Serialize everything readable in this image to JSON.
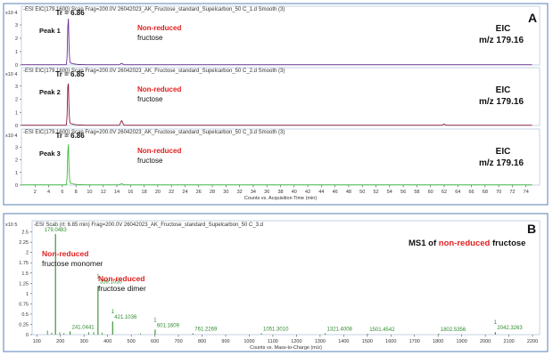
{
  "chart_data": [
    {
      "type": "line",
      "panel": "A",
      "header": "-ESI EIC(179.1600) Scan Frag=200.0V 26042023_AK_Fructose_standard_Supelcarbon_50 C_1.d  Smooth (3)",
      "yexp": "x10 4",
      "y_ticks": [
        "0",
        "1",
        "2",
        "3"
      ],
      "peak_label": "Peak 1",
      "retention": "Tr = 6.86",
      "tr": 6.86,
      "peak_height": 3.6,
      "minor_peaks": [
        {
          "x": 14.7,
          "y": 0.1
        }
      ],
      "color": "#6b2f8f",
      "ann_red": "Non-reduced",
      "ann_black": "fructose",
      "eic": "EIC",
      "mz": "m/z 179.16",
      "xlim": [
        0,
        76
      ]
    },
    {
      "type": "line",
      "header": "-ESI EIC(179.1600) Scan Frag=200.0V 26042023_AK_Fructose_standard_Supelcarbon_50 C_2.d  Smooth (3)",
      "yexp": "x10 4",
      "y_ticks": [
        "0",
        "1",
        "2",
        "3"
      ],
      "peak_label": "Peak 2",
      "retention": "Tr = 6.85",
      "tr": 6.85,
      "peak_height": 3.5,
      "minor_peaks": [
        {
          "x": 14.7,
          "y": 0.35
        },
        {
          "x": 62,
          "y": 0.08
        }
      ],
      "color": "#8b1a3a",
      "ann_red": "Non-reduced",
      "ann_black": "fructose",
      "eic": "EIC",
      "mz": "m/z 179.16",
      "xlim": [
        0,
        76
      ]
    },
    {
      "type": "line",
      "header": "-ESI EIC(179.1600) Scan Frag=200.0V 26042023_AK_Fructose_standard_Supelcarbon_50 C_3.d  Smooth (3)",
      "yexp": "x10 4",
      "y_ticks": [
        "0",
        "1",
        "2",
        "3"
      ],
      "peak_label": "Peak 3",
      "retention": "Tr = 6.86",
      "tr": 6.86,
      "peak_height": 3.3,
      "minor_peaks": [
        {
          "x": 14.7,
          "y": 0.1
        }
      ],
      "color": "#3cb93c",
      "ann_red": "Non-reduced",
      "ann_black": "fructose",
      "eic": "EIC",
      "mz": "m/z 179.16",
      "xlim": [
        0,
        76
      ],
      "x_ticks": [
        2,
        4,
        6,
        8,
        10,
        12,
        14,
        16,
        18,
        20,
        22,
        24,
        26,
        28,
        30,
        32,
        34,
        36,
        38,
        40,
        42,
        44,
        46,
        48,
        50,
        52,
        54,
        56,
        58,
        60,
        62,
        64,
        66,
        68,
        70,
        72,
        74
      ],
      "xlabel": "Counts vs. Acquisition Time (min)"
    },
    {
      "type": "bar",
      "panel": "B",
      "header": "-ESI Scan (rt: 6.85 min) Frag=200.0V 26042023_AK_Fructose_standard_Supelcarbon_50 C_3.d",
      "yexp": "x10 5",
      "y_ticks": [
        "0",
        "0.25",
        "0.5",
        "0.75",
        "1",
        "1.25",
        "1.5",
        "1.75",
        "2",
        "2.25",
        "2.5"
      ],
      "ylim": [
        0,
        2.6
      ],
      "xlim": [
        80,
        2230
      ],
      "x_ticks": [
        100,
        200,
        300,
        400,
        500,
        600,
        700,
        800,
        900,
        1000,
        1100,
        1200,
        1300,
        1400,
        1500,
        1600,
        1700,
        1800,
        1900,
        2000,
        2100,
        2200
      ],
      "xlabel": "Counts vs. Mass-to-Charge (m/z)",
      "peaks": [
        {
          "mz": 179.0483,
          "intensity": 2.45,
          "label": "179.0483",
          "marker": "1"
        },
        {
          "mz": 241.0441,
          "intensity": 0.08,
          "label": "241.0441",
          "marker": ""
        },
        {
          "mz": 359.105,
          "intensity": 1.18,
          "label": "359.1050",
          "marker": "1"
        },
        {
          "mz": 421.1036,
          "intensity": 0.32,
          "label": "421.1036",
          "marker": "1"
        },
        {
          "mz": 601.1609,
          "intensity": 0.12,
          "label": "601.1609",
          "marker": "1"
        },
        {
          "mz": 761.2269,
          "intensity": 0.03,
          "label": "761.2269",
          "marker": ""
        },
        {
          "mz": 1051.301,
          "intensity": 0.03,
          "label": "1051.3010",
          "marker": ""
        },
        {
          "mz": 1321.4008,
          "intensity": 0.03,
          "label": "1321.4008",
          "marker": ""
        },
        {
          "mz": 1501.4542,
          "intensity": 0.02,
          "label": "1501.4542",
          "marker": ""
        },
        {
          "mz": 1802.5356,
          "intensity": 0.02,
          "label": "1802.5356",
          "marker": ""
        },
        {
          "mz": 2042.3263,
          "intensity": 0.06,
          "label": "2042.3263",
          "marker": "1"
        }
      ],
      "minor_peaks": [
        {
          "mz": 145,
          "i": 0.1
        },
        {
          "mz": 163,
          "i": 0.05
        },
        {
          "mz": 197,
          "i": 0.06
        },
        {
          "mz": 215,
          "i": 0.04
        },
        {
          "mz": 320,
          "i": 0.06
        },
        {
          "mz": 341,
          "i": 0.07
        },
        {
          "mz": 377,
          "i": 0.05
        },
        {
          "mz": 539,
          "i": 0.03
        }
      ],
      "title_prefix": "MS1 of ",
      "title_red": "non-reduced",
      "title_suffix": " fructose",
      "monomer_red": "Non-reduced",
      "monomer_black": "fructose monomer",
      "dimer_red": "Non-reduced",
      "dimer_black": "fructose dimer",
      "color": "#2e8b2e"
    }
  ]
}
